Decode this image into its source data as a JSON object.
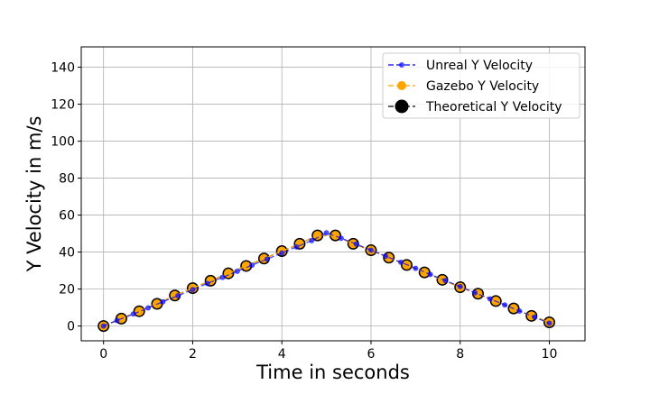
{
  "chart_data": {
    "type": "line",
    "title": "",
    "xlabel": "Time in seconds",
    "ylabel": "Y Velocity in m/s",
    "xlim": [
      -0.5,
      10.8
    ],
    "ylim": [
      -8,
      151
    ],
    "xticks": [
      0,
      2,
      4,
      6,
      8,
      10
    ],
    "yticks": [
      0,
      20,
      40,
      60,
      80,
      100,
      120,
      140
    ],
    "grid": true,
    "legend_position": "top-right",
    "series": [
      {
        "name": "Unreal Y Velocity",
        "color": "#0000ff",
        "marker": "small-dot",
        "linestyle": "dashed",
        "x": [
          0,
          0.3,
          0.67,
          1.0,
          1.33,
          1.67,
          2.0,
          2.33,
          2.67,
          3.0,
          3.33,
          3.67,
          4.0,
          4.33,
          4.67,
          5.0,
          5.33,
          5.67,
          6.0,
          6.33,
          6.67,
          7.0,
          7.33,
          7.67,
          8.0,
          8.33,
          8.67,
          9.0,
          9.33,
          9.67,
          10.0
        ],
        "y": [
          0,
          3,
          6.5,
          9.8,
          13.1,
          16.4,
          19.7,
          23,
          26.3,
          29.6,
          32.9,
          36.2,
          39.5,
          42.8,
          46.2,
          50.4,
          47.5,
          44.3,
          41,
          37.8,
          34.5,
          31.2,
          27.9,
          24.6,
          21.3,
          18,
          14.7,
          11.4,
          8.1,
          4.8,
          1.5
        ]
      },
      {
        "name": "Gazebo Y Velocity",
        "color": "#ffa500",
        "marker": "dot",
        "linestyle": "dashed",
        "x": [
          0,
          0.4,
          0.8,
          1.2,
          1.6,
          2.0,
          2.4,
          2.8,
          3.2,
          3.6,
          4.0,
          4.4,
          4.8,
          5.2,
          5.6,
          6.0,
          6.4,
          6.8,
          7.2,
          7.6,
          8.0,
          8.4,
          8.8,
          9.2,
          9.6,
          10.0
        ],
        "y": [
          0,
          4,
          8,
          12,
          16.5,
          20.5,
          24.5,
          28.5,
          32.5,
          36.5,
          40.5,
          44.5,
          49,
          49,
          44.5,
          41,
          37,
          33,
          29,
          25,
          21,
          17.5,
          13.5,
          9.5,
          5.5,
          2
        ]
      },
      {
        "name": "Theoretical Y Velocity",
        "color": "#000000",
        "marker": "big-dot",
        "linestyle": "dashed",
        "x": [
          0,
          0.4,
          0.8,
          1.2,
          1.6,
          2.0,
          2.4,
          2.8,
          3.2,
          3.6,
          4.0,
          4.4,
          4.8,
          5.2,
          5.6,
          6.0,
          6.4,
          6.8,
          7.2,
          7.6,
          8.0,
          8.4,
          8.8,
          9.2,
          9.6,
          10.0
        ],
        "y": [
          0,
          4,
          8,
          12,
          16.5,
          20.5,
          24.5,
          28.5,
          32.5,
          36.5,
          40.5,
          44.5,
          49,
          49,
          44.5,
          41,
          37,
          33,
          29,
          25,
          21,
          17.5,
          13.5,
          9.5,
          5.5,
          2
        ]
      }
    ]
  }
}
